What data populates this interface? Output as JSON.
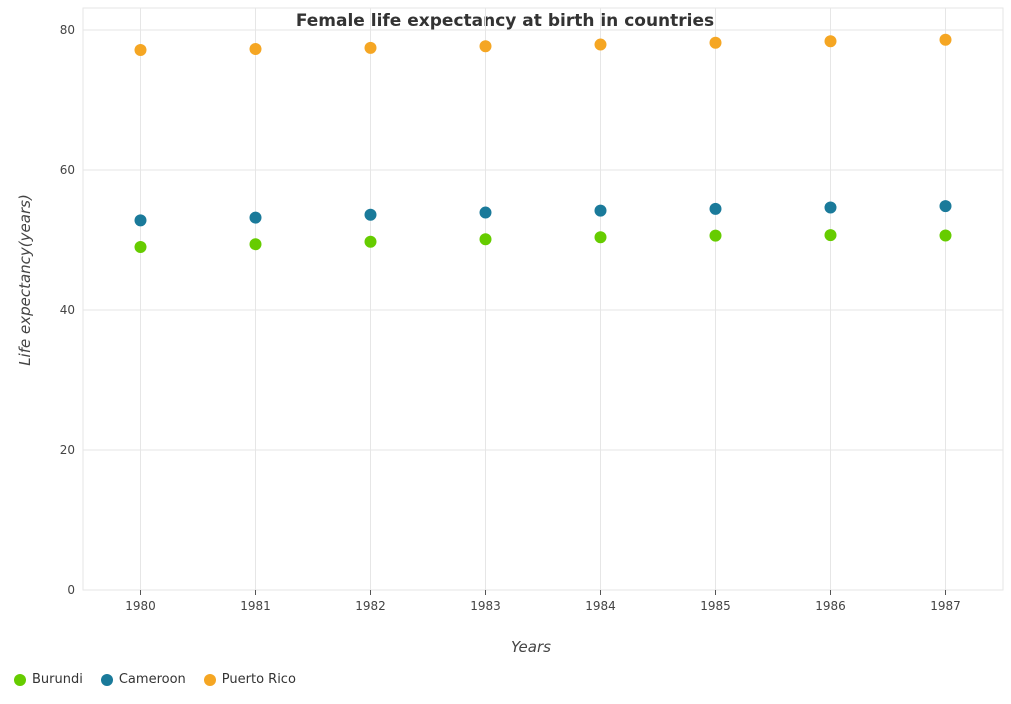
{
  "chart_data": {
    "type": "scatter",
    "title": "Female life expectancy at birth in countries",
    "xlabel": "Years",
    "ylabel": "Life expectancy(years)",
    "ylim": [
      0,
      80
    ],
    "yticks": [
      0,
      20,
      40,
      60,
      80
    ],
    "categories": [
      "1980",
      "1981",
      "1982",
      "1983",
      "1984",
      "1985",
      "1986",
      "1987"
    ],
    "series": [
      {
        "name": "Burundi",
        "color": "#66cc00",
        "values": [
          49.0,
          49.4,
          49.75,
          50.1,
          50.4,
          50.62,
          50.7,
          50.64
        ]
      },
      {
        "name": "Cameroon",
        "color": "#1a7a9a",
        "values": [
          52.8,
          53.2,
          53.6,
          53.92,
          54.2,
          54.44,
          54.64,
          54.84
        ]
      },
      {
        "name": "Puerto Rico",
        "color": "#f5a623",
        "values": [
          77.15,
          77.28,
          77.45,
          77.68,
          77.92,
          78.18,
          78.4,
          78.6
        ]
      }
    ],
    "grid": true,
    "legend_position": "bottom-left"
  }
}
